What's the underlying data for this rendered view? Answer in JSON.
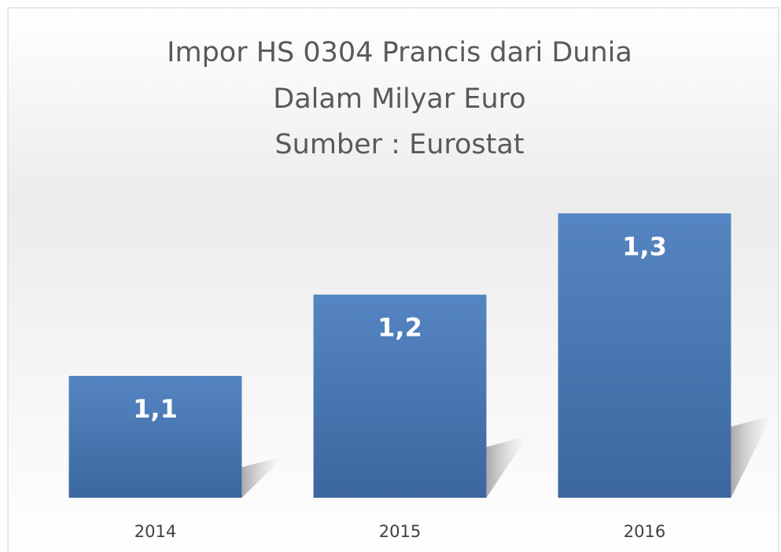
{
  "chart_data": {
    "type": "bar",
    "title": "Impor HS 0304 Prancis dari Dunia",
    "subtitle": "Dalam Milyar Euro",
    "source": "Sumber : Eurostat",
    "categories": [
      "2014",
      "2015",
      "2016"
    ],
    "values": [
      1.1,
      1.2,
      1.3
    ],
    "value_labels": [
      "1,1",
      "1,2",
      "1,3"
    ],
    "color": "#4a7ab5",
    "ylim": [
      0.95,
      1.34
    ]
  }
}
